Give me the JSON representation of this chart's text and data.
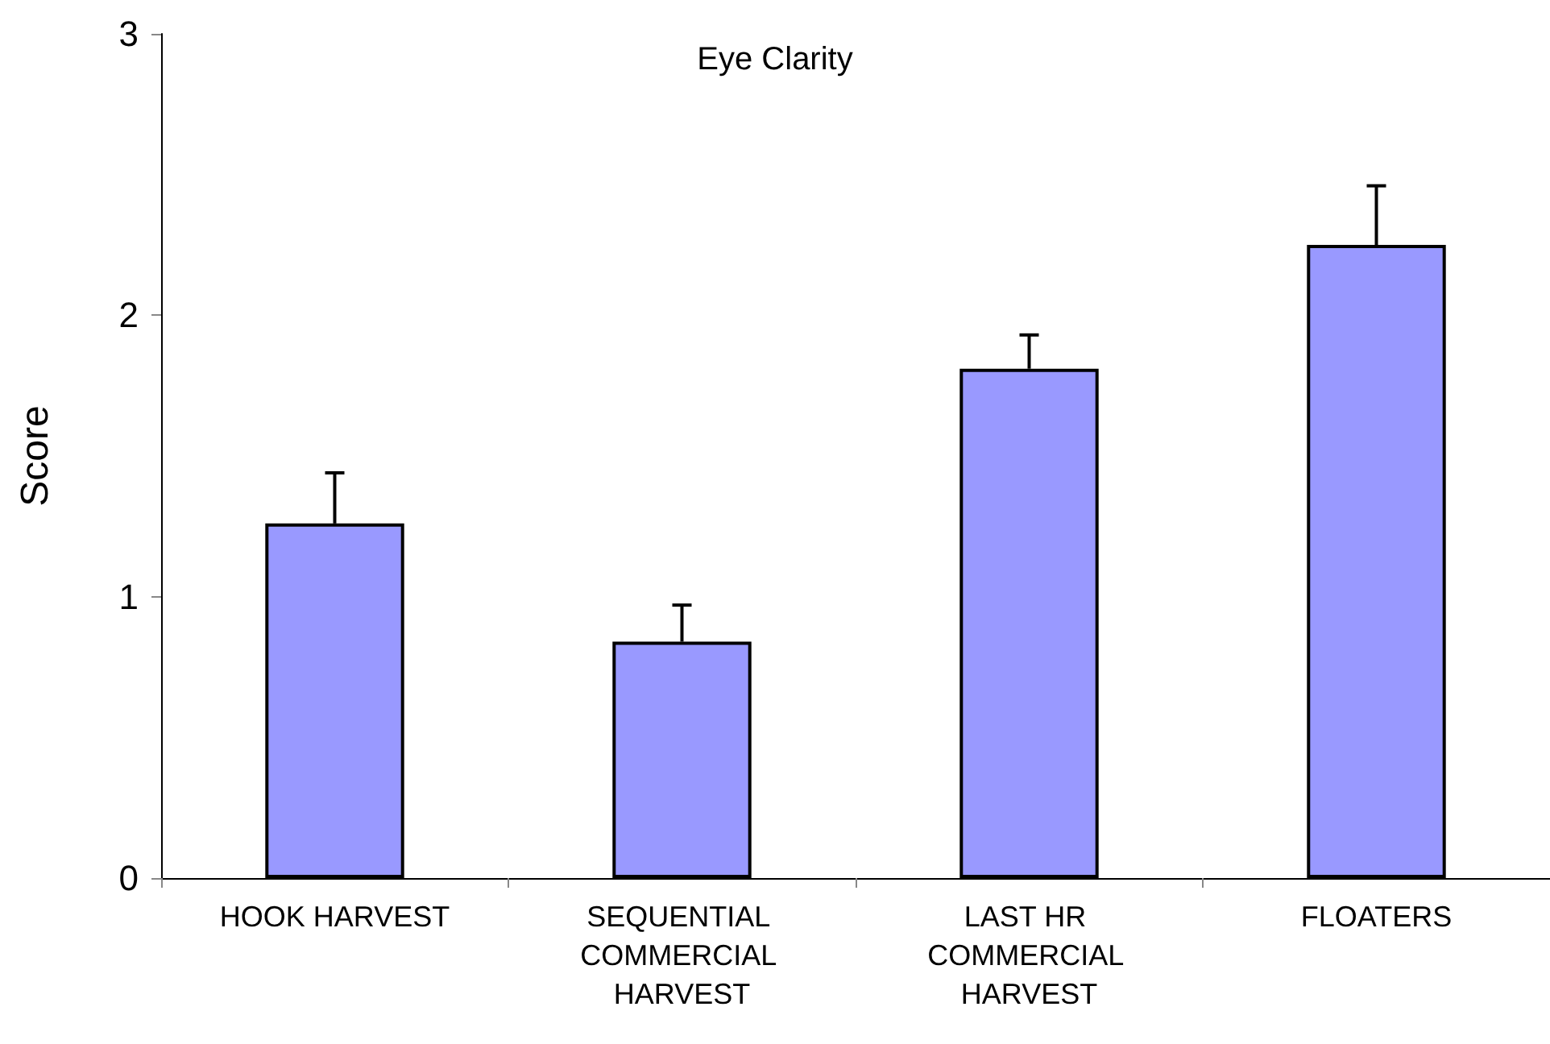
{
  "chart_data": {
    "type": "bar",
    "title": "Eye Clarity",
    "ylabel": "Score",
    "categories": [
      "HOOK HARVEST",
      "SEQUENTIAL COMMERCIAL HARVEST",
      "LAST HR COMMERCIAL HARVEST",
      "FLOATERS"
    ],
    "values": [
      1.26,
      0.84,
      1.81,
      2.25
    ],
    "errors": [
      [
        1.26,
        1.44
      ],
      [
        0.84,
        0.97
      ],
      [
        1.81,
        1.93
      ],
      [
        2.25,
        2.46
      ]
    ],
    "color": "#9999ff",
    "ylim": [
      0,
      3
    ],
    "yticks": [
      0,
      1,
      2,
      3
    ],
    "grid": false
  }
}
